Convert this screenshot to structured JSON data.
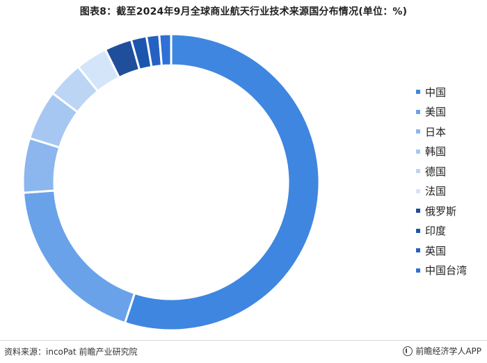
{
  "title": "图表8：截至2024年9月全球商业航天行业技术来源国分布情况(单位：%)",
  "chart_data": {
    "type": "pie",
    "subtype": "donut",
    "title": "图表8：截至2024年9月全球商业航天行业技术来源国分布情况(单位：%)",
    "legend_position": "right",
    "categories": [
      "中国",
      "美国",
      "日本",
      "韩国",
      "德国",
      "法国",
      "俄罗斯",
      "印度",
      "英国",
      "中国台湾"
    ],
    "values": [
      55.6,
      19.0,
      6.0,
      5.5,
      4.0,
      3.5,
      3.0,
      1.7,
      1.4,
      1.3
    ],
    "colors": [
      "#3f86e0",
      "#6aa2ea",
      "#8bb6ee",
      "#a6c7f2",
      "#bcd5f5",
      "#d4e5f9",
      "#1f4e9b",
      "#1b55ad",
      "#2461c2",
      "#2e70d6"
    ]
  },
  "footer": {
    "source": "资料来源：incoPat 前瞻产业研究院",
    "brand": "前瞻经济学人APP"
  }
}
